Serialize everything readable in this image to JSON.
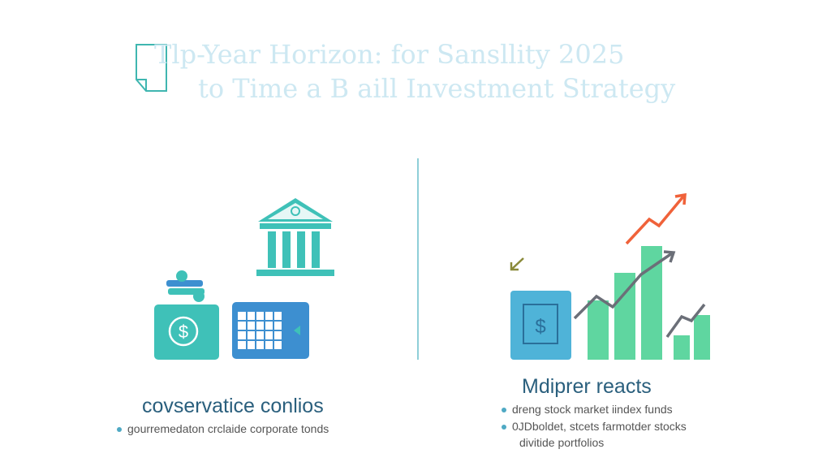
{
  "header": {
    "title_line1": "Tlp-Year Horizon: for Sansllity 2025",
    "title_line2": "to Time a B aill Investment Strategy"
  },
  "left": {
    "heading": "covservatice conlios",
    "bullets": [
      "gourremedaton crclaide corporate tonds"
    ],
    "icons": [
      "bank-icon",
      "coin-stack-icon",
      "dollar-wallet-icon",
      "calculator-icon"
    ]
  },
  "right": {
    "heading": "Mdiprer reacts",
    "bullets": [
      "dreng stock market iindex funds",
      "0JDboldet, stcets farmotder stocks",
      "divitide portfolios"
    ],
    "icons": [
      "dollar-card-icon",
      "bar-chart-icon",
      "trend-arrow-icon"
    ]
  },
  "colors": {
    "teal": "#3fc1b8",
    "blue": "#3d8fd0",
    "green": "#5fd6a0",
    "orange": "#f0623a",
    "title": "#cde8f2"
  }
}
